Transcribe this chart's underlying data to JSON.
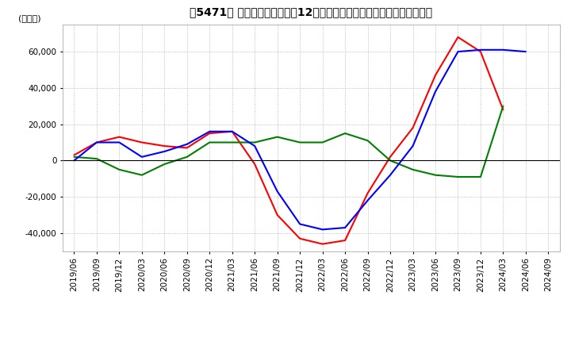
{
  "title": "【5471】 キャッシュフローの12か月移動合計の対前年同期増減額の推移",
  "ylabel": "(百万円)",
  "ylim": [
    -50000,
    75000
  ],
  "yticks": [
    -40000,
    -20000,
    0,
    20000,
    40000,
    60000
  ],
  "colors": {
    "eigyo": "#FF0000",
    "toshi": "#008000",
    "free": "#0000FF"
  },
  "x_labels": [
    "2019/06",
    "2019/09",
    "2019/12",
    "2020/03",
    "2020/06",
    "2020/09",
    "2020/12",
    "2021/03",
    "2021/06",
    "2021/09",
    "2021/12",
    "2022/03",
    "2022/06",
    "2022/09",
    "2022/12",
    "2023/03",
    "2023/06",
    "2023/09",
    "2023/12",
    "2024/03",
    "2024/06",
    "2024/09"
  ],
  "eigyo_cf": [
    3000,
    10000,
    13000,
    10000,
    8000,
    7000,
    15000,
    16000,
    -2000,
    -30000,
    -43000,
    -46000,
    -44000,
    -18000,
    2000,
    18000,
    47000,
    68000,
    60000,
    28000,
    null,
    null
  ],
  "toshi_cf": [
    2000,
    1000,
    -5000,
    -8000,
    -2000,
    2000,
    10000,
    10000,
    10000,
    13000,
    10000,
    10000,
    15000,
    11000,
    0,
    -5000,
    -8000,
    -9000,
    -9000,
    30000,
    null,
    null
  ],
  "free_cf": [
    0,
    10000,
    10000,
    2000,
    5000,
    9000,
    16000,
    16000,
    8000,
    -17000,
    -35000,
    -38000,
    -37000,
    -22000,
    -8000,
    8000,
    38000,
    60000,
    61000,
    61000,
    60000,
    null
  ]
}
